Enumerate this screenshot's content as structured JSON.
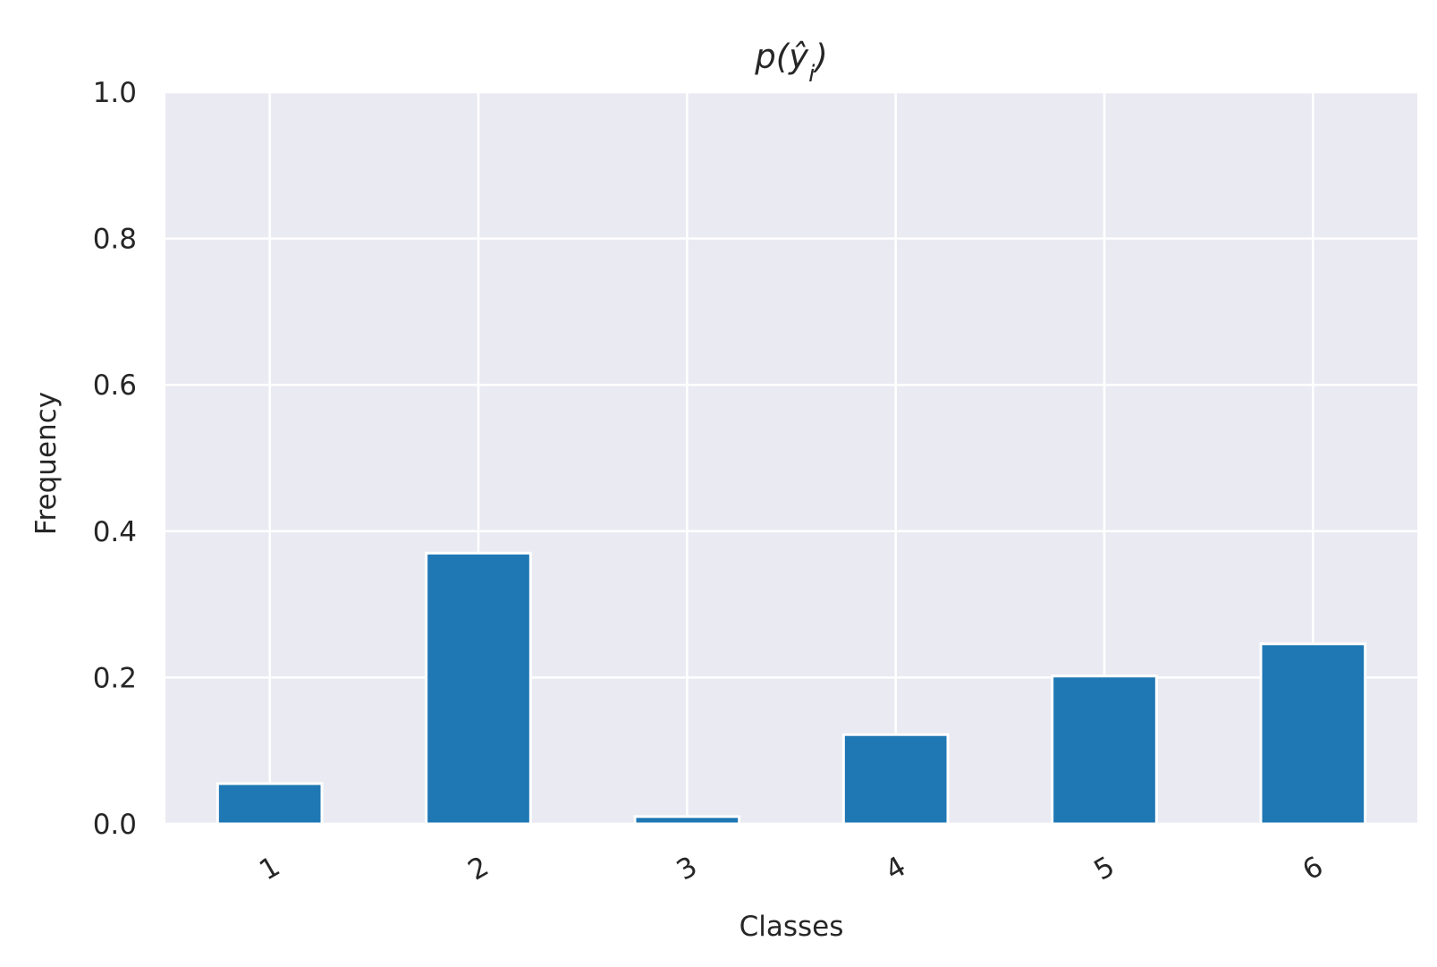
{
  "chart_data": {
    "type": "bar",
    "title": "p(ŷ_i)",
    "title_parts": {
      "base": "p(",
      "var": "ŷ",
      "sub": "i",
      "end": ")"
    },
    "xlabel": "Classes",
    "ylabel": "Frequency",
    "categories": [
      "1",
      "2",
      "3",
      "4",
      "5",
      "6"
    ],
    "values": [
      0.055,
      0.37,
      0.01,
      0.122,
      0.202,
      0.246
    ],
    "ylim": [
      0,
      1
    ],
    "yticks": [
      "0.0",
      "0.2",
      "0.4",
      "0.6",
      "0.8",
      "1.0"
    ],
    "ytick_values": [
      0,
      0.2,
      0.4,
      0.6,
      0.8,
      1.0
    ],
    "grid": true,
    "colors": {
      "bar": "#1f77b4",
      "plot_bg": "#eaeaf2",
      "grid": "#ffffff",
      "text": "#262626"
    }
  }
}
